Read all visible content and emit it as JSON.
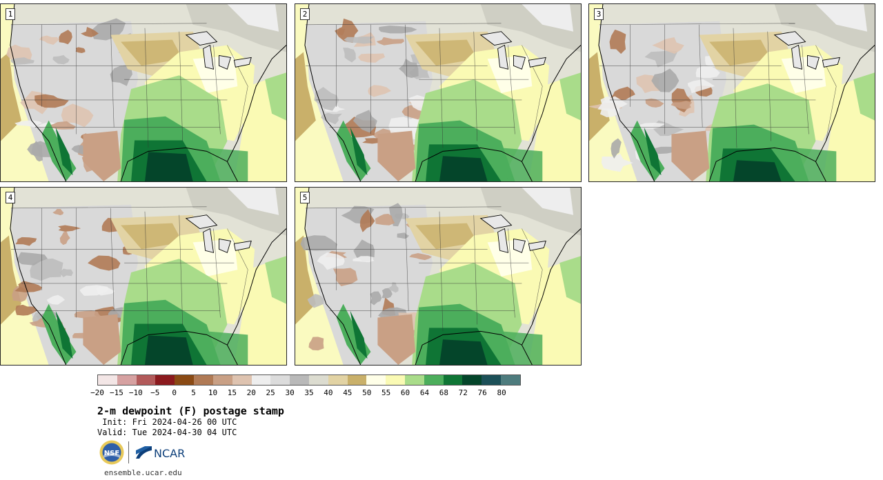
{
  "panels": [
    {
      "label": "1",
      "variant": 0
    },
    {
      "label": "2",
      "variant": 1
    },
    {
      "label": "3",
      "variant": 2
    },
    {
      "label": "4",
      "variant": 3
    },
    {
      "label": "5",
      "variant": 4
    }
  ],
  "colorbar": {
    "colors": [
      "#f3e6e6",
      "#d6a1a1",
      "#b25a5a",
      "#8b1a1e",
      "#8a4a14",
      "#b07a55",
      "#c9a085",
      "#dec3b0",
      "#eeeeee",
      "#dcdcdc",
      "#b9b9b9",
      "#dcdcd0",
      "#e2d3a4",
      "#c9b06a",
      "#ffffe8",
      "#fafab4",
      "#a9dc8a",
      "#4cae5c",
      "#0f7535",
      "#04452a",
      "#1c5058",
      "#4e7c7e"
    ],
    "ticks": [
      "−20",
      "−15",
      "−10",
      "−5",
      "0",
      "5",
      "10",
      "15",
      "20",
      "25",
      "30",
      "35",
      "40",
      "45",
      "50",
      "55",
      "60",
      "64",
      "68",
      "72",
      "76",
      "80"
    ]
  },
  "title": "2-m dewpoint (F) postage stamp",
  "init_text": " Init: Fri 2024-04-26 00 UTC",
  "valid_text": "Valid: Tue 2024-04-30 04 UTC",
  "logos": {
    "nsf": "NSF",
    "ncar": "NCAR"
  },
  "site": "ensemble.ucar.edu"
}
